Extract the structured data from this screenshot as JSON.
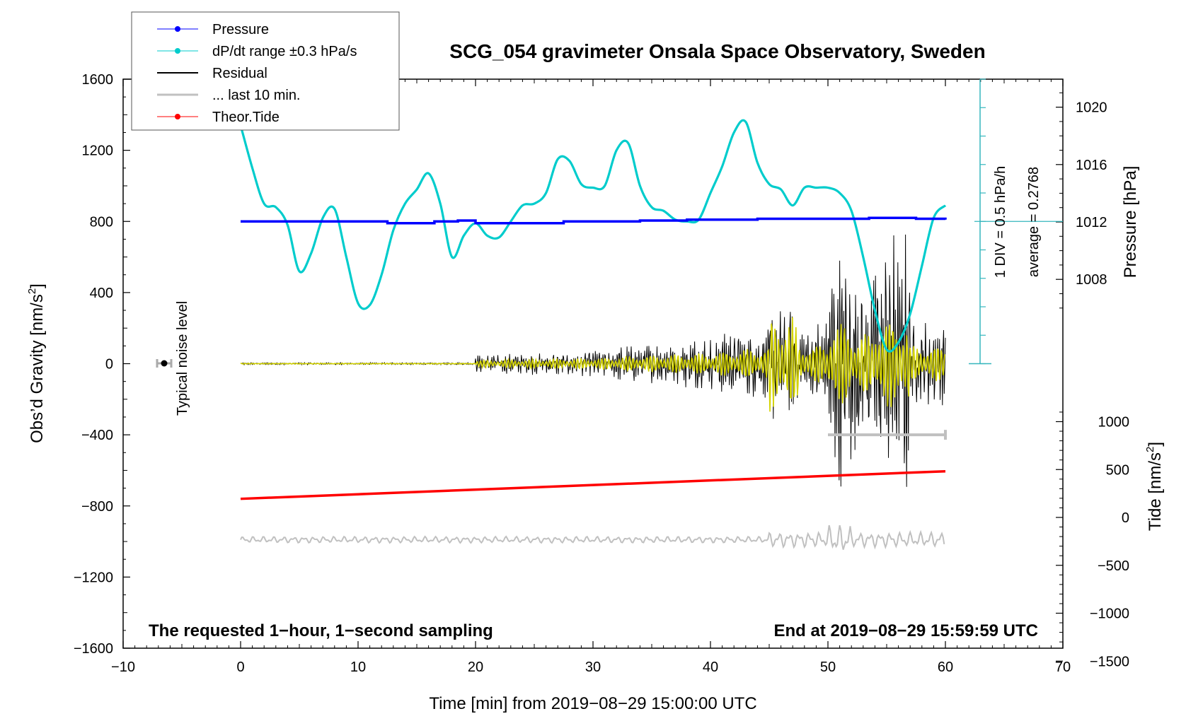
{
  "chart_data": {
    "type": "line",
    "title": "SCG_054 gravimeter Onsala Space Observatory, Sweden",
    "xlabel": "Time [min] from 2019−08−29 15:00:00 UTC",
    "ylabel_left": "Obs’d Gravity [nm/s",
    "ylabel_left_sup": "2",
    "ylabel_left_close": "]",
    "ylabel_pressure": "Pressure [hPa]",
    "ylabel_tide": "Tide [nm/s",
    "ylabel_tide_sup": "2",
    "ylabel_tide_close": "]",
    "xlim": [
      -10,
      70
    ],
    "ylim": [
      -1600,
      1600
    ],
    "x_ticks": [
      "−10",
      "0",
      "10",
      "20",
      "30",
      "40",
      "50",
      "60",
      "70"
    ],
    "x_tick_values": [
      -10,
      0,
      10,
      20,
      30,
      40,
      50,
      60,
      70
    ],
    "y_ticks": [
      "1600",
      "1200",
      "800",
      "400",
      "0",
      "−400",
      "−800",
      "−1200",
      "−1600"
    ],
    "y_tick_values": [
      1600,
      1200,
      800,
      400,
      0,
      -400,
      -800,
      -1200,
      -1600
    ],
    "pressure_ticks": [
      "1020",
      "1016",
      "1012",
      "1008"
    ],
    "pressure_tick_values": [
      1020,
      1016,
      1012,
      1008
    ],
    "tide_ticks": [
      "1000",
      "500",
      "0",
      "−500",
      "−1000",
      "−1500"
    ],
    "tide_tick_values": [
      1000,
      500,
      0,
      -500,
      -1000,
      -1500
    ],
    "legend": [
      {
        "label": "Pressure",
        "color": "#0000ff",
        "marker": true
      },
      {
        "label": "dP/dt range ±0.3 hPa/s",
        "color": "#00cccc",
        "marker": true
      },
      {
        "label": "Residual",
        "color": "#000000",
        "marker": false
      },
      {
        "label": "... last 10 min.",
        "color": "#c0c0c0",
        "marker": false
      },
      {
        "label": "Theor.Tide",
        "color": "#ff0000",
        "marker": true
      }
    ],
    "annotations": {
      "noise_label": "Typical noise level",
      "scale_label": "1 DIV = 0.5 hPa/h",
      "average_label": "average = 0.2768",
      "bottom_left": "The requested 1−hour, 1−second sampling",
      "bottom_right": "End at 2019−08−29 15:59:59 UTC"
    },
    "series": [
      {
        "name": "Pressure",
        "color": "#0000ff",
        "x": [
          0,
          7,
          12.5,
          16.5,
          18.5,
          20,
          22,
          27.5,
          34,
          38,
          44,
          53.5,
          57.5,
          60
        ],
        "y": [
          800,
          800,
          790,
          800,
          805,
          790,
          790,
          800,
          805,
          810,
          815,
          820,
          815,
          810
        ]
      },
      {
        "name": "dP/dt",
        "color": "#00cccc",
        "x": [
          0,
          1,
          2,
          3,
          4,
          5,
          6,
          7,
          8,
          9,
          10,
          11,
          12,
          13,
          14,
          15,
          16,
          17,
          18,
          19,
          20,
          21,
          22,
          23,
          24,
          25,
          26,
          27,
          28,
          29,
          30,
          31,
          32,
          33,
          34,
          35,
          36,
          37,
          38,
          39,
          40,
          41,
          42,
          43,
          44,
          45,
          46,
          47,
          48,
          49,
          50,
          51,
          52,
          53,
          54,
          55,
          56,
          57,
          58,
          59,
          60
        ],
        "y": [
          1340,
          1100,
          900,
          880,
          780,
          520,
          620,
          820,
          870,
          600,
          340,
          330,
          500,
          750,
          900,
          980,
          1070,
          900,
          600,
          720,
          790,
          720,
          710,
          800,
          890,
          900,
          960,
          1150,
          1140,
          1010,
          990,
          1000,
          1200,
          1240,
          1000,
          880,
          860,
          810,
          800,
          810,
          960,
          1110,
          1300,
          1360,
          1130,
          1010,
          980,
          890,
          990,
          990,
          990,
          960,
          860,
          600,
          300,
          80,
          120,
          280,
          550,
          820,
          890
        ]
      },
      {
        "name": "Theor.Tide",
        "color": "#ff0000",
        "x": [
          0,
          60
        ],
        "y": [
          -760,
          -605
        ]
      }
    ]
  }
}
